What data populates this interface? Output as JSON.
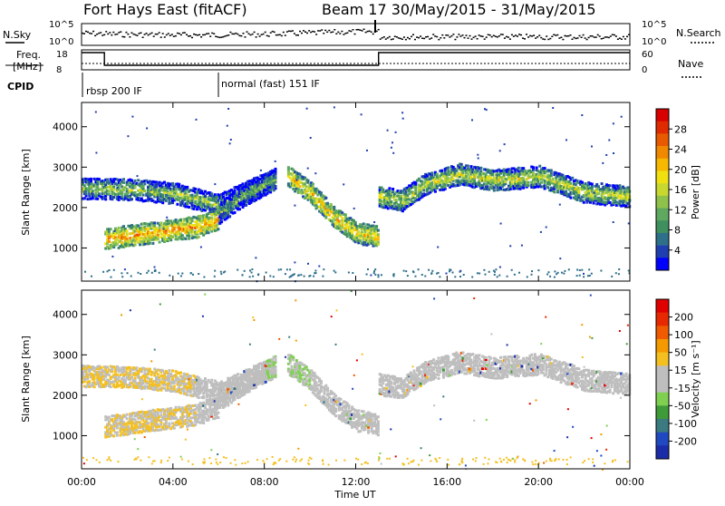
{
  "title_left": "Fort Hays East (fitACF)",
  "title_right": "Beam 17  30/May/2015 - 31/May/2015",
  "header_left": {
    "nsky": "N.Sky",
    "freq_line1": "Freq.",
    "freq_line2": "[MHz]",
    "cpid": "CPID"
  },
  "header_right": {
    "nsearch": "N.Search",
    "nave": "Nave"
  },
  "cpid_labels": [
    "rbsp 200 IF",
    "normal (fast) 151 IF"
  ],
  "colorbars": {
    "power": {
      "label": "Power [dB]",
      "ticks": [
        "28",
        "24",
        "20",
        "16",
        "12",
        "8",
        "4"
      ],
      "colors": [
        "#0000ff",
        "#1f3fb0",
        "#2e6f8a",
        "#3f8f5f",
        "#5fa860",
        "#8fc24a",
        "#c8d82e",
        "#f0e010",
        "#f6b800",
        "#f08800",
        "#e85a00",
        "#e02a00",
        "#d80000"
      ]
    },
    "velocity": {
      "label": "Velocity [m s⁻¹]",
      "ticks": [
        "200",
        "100",
        "50",
        "15",
        "-15",
        "-50",
        "-100",
        "-200"
      ],
      "colors": [
        "#1a2ca8",
        "#2048c0",
        "#3a7a80",
        "#3f9a3a",
        "#7fd050",
        "#bebebe",
        "#bebebe",
        "#f4c020",
        "#f49a00",
        "#f05a00",
        "#e82800",
        "#e00000"
      ]
    }
  },
  "chart_data": {
    "type": "heatmap",
    "title": "Fort Hays East (fitACF)   Beam 17  30/May/2015 - 31/May/2015",
    "xlabel": "Time UT",
    "xticks": [
      "00:00",
      "04:00",
      "08:00",
      "12:00",
      "16:00",
      "20:00",
      "00:00"
    ],
    "xlim_hours": [
      0,
      24
    ],
    "ylabel": "Slant Range [km]",
    "yticks": [
      "1000",
      "2000",
      "3000",
      "4000"
    ],
    "ylim_km": [
      180,
      4600
    ],
    "nsky_ticks": [
      "10^5",
      "10^0"
    ],
    "nsearch_ticks": [
      "10^5",
      "10^0"
    ],
    "freq_ticks": [
      "18",
      "8"
    ],
    "nave_ticks": [
      "60",
      "0"
    ],
    "frequency_mhz": [
      {
        "from": 0,
        "to": 1.0,
        "value": 18
      },
      {
        "from": 1.0,
        "to": 13.0,
        "value": 8
      },
      {
        "from": 13.0,
        "to": 24,
        "value": 18
      }
    ],
    "cpid_change_hours": [
      0,
      6.0,
      13.0
    ],
    "power_ticks": [
      4,
      8,
      12,
      16,
      20,
      24,
      28
    ],
    "velocity_ticks": [
      -200,
      -100,
      -50,
      -15,
      15,
      50,
      100,
      200
    ],
    "echo_bands": [
      {
        "t": [
          0.0,
          2.0,
          4.0,
          6.0,
          7.5,
          8.5
        ],
        "range_km": [
          2500,
          2480,
          2380,
          2100,
          2500,
          2750
        ],
        "power_db": 12
      },
      {
        "t": [
          1.0,
          3.0,
          5.0,
          6.0
        ],
        "range_km": [
          1250,
          1400,
          1550,
          1750
        ],
        "power_db": 20
      },
      {
        "t": [
          6.0,
          7.0,
          8.5
        ],
        "range_km": [
          1900,
          2300,
          2750
        ],
        "power_db": 10
      },
      {
        "t": [
          9.0,
          10.0,
          11.0,
          12.0,
          13.0
        ],
        "range_km": [
          2800,
          2400,
          1800,
          1400,
          1300
        ],
        "power_db": 18
      },
      {
        "t": [
          13.0,
          14.0,
          15.0,
          16.5,
          18.0,
          20.0,
          22.0,
          24.0
        ],
        "range_km": [
          2300,
          2200,
          2600,
          2850,
          2700,
          2800,
          2400,
          2300
        ],
        "power_db": 14
      }
    ]
  }
}
